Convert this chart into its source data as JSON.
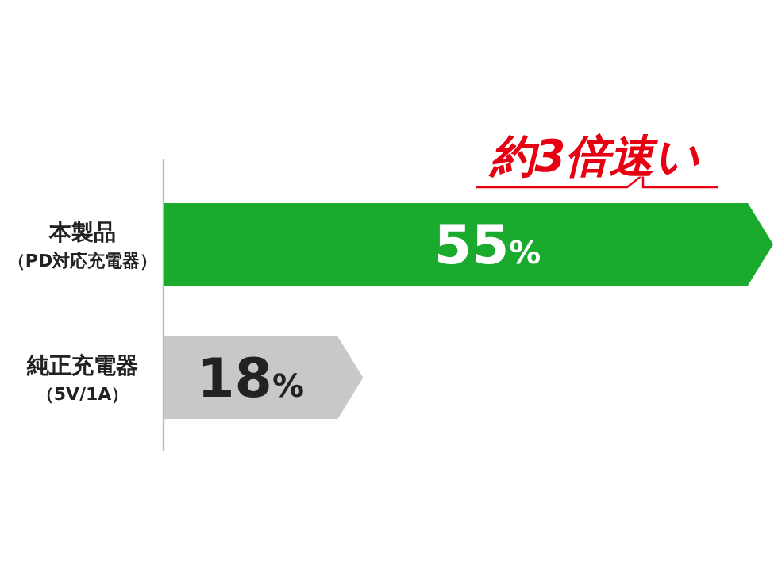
{
  "chart_data": {
    "type": "bar",
    "orientation": "horizontal",
    "categories": [
      "本製品（PD対応充電器）",
      "純正充電器（5V/1A）"
    ],
    "values": [
      55,
      18
    ],
    "colors": [
      "#1aab2e",
      "#c8c8c9"
    ],
    "value_labels": [
      "55%",
      "18%"
    ],
    "annotations": [
      "約3倍速い"
    ]
  }
}
